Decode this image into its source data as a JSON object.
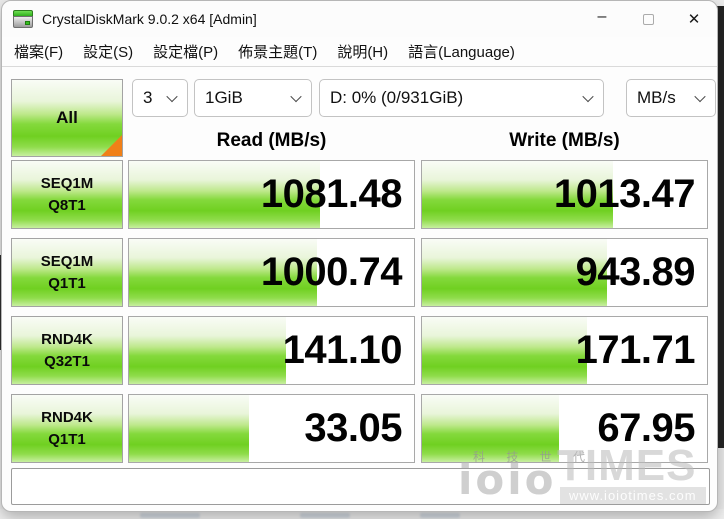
{
  "window": {
    "title": "CrystalDiskMark 9.0.2 x64 [Admin]",
    "controls": {
      "minimize": "–",
      "close": "✕"
    }
  },
  "menu": {
    "items": [
      {
        "label": "檔案(F)"
      },
      {
        "label": "設定(S)"
      },
      {
        "label": "設定檔(P)"
      },
      {
        "label": "佈景主題(T)"
      },
      {
        "label": "說明(H)"
      },
      {
        "label": "語言(Language)"
      }
    ]
  },
  "toolbar": {
    "all_label": "All",
    "test_count": {
      "value": "3"
    },
    "test_size": {
      "value": "1GiB"
    },
    "target_drive": {
      "value": "D: 0% (0/931GiB)"
    },
    "unit": {
      "value": "MB/s"
    }
  },
  "results": {
    "read_header": "Read (MB/s)",
    "write_header": "Write (MB/s)",
    "rows": [
      {
        "label1": "SEQ1M",
        "label2": "Q8T1",
        "read": "1081.48",
        "write": "1013.47",
        "read_fill": 0.67,
        "write_fill": 0.67
      },
      {
        "label1": "SEQ1M",
        "label2": "Q1T1",
        "read": "1000.74",
        "write": "943.89",
        "read_fill": 0.66,
        "write_fill": 0.65
      },
      {
        "label1": "RND4K",
        "label2": "Q32T1",
        "read": "141.10",
        "write": "171.71",
        "read_fill": 0.55,
        "write_fill": 0.58
      },
      {
        "label1": "RND4K",
        "label2": "Q1T1",
        "read": "33.05",
        "write": "67.95",
        "read_fill": 0.42,
        "write_fill": 0.48
      }
    ]
  },
  "comment_box": {
    "value": ""
  },
  "watermark": {
    "tagline": "科 技 世 代",
    "logo": "ioio",
    "name": "TIMES",
    "url": "www.ioiotimes.com"
  },
  "colors": {
    "accent_green": "#70d021",
    "corner_orange": "#f08018",
    "backdrop_dark": "#242424"
  }
}
